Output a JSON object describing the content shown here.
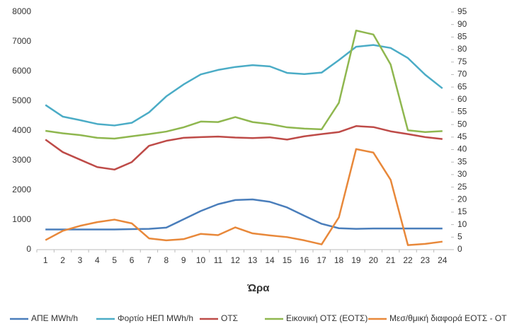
{
  "chart_data": {
    "type": "line",
    "x_label": "Ώρα",
    "categories": [
      "1",
      "2",
      "3",
      "4",
      "5",
      "6",
      "7",
      "8",
      "9",
      "10",
      "11",
      "12",
      "13",
      "14",
      "15",
      "16",
      "17",
      "18",
      "19",
      "20",
      "21",
      "22",
      "23",
      "24"
    ],
    "series": [
      {
        "name": "ΑΠΕ MWh/h",
        "color": "#4a7ebb",
        "values": [
          680,
          680,
          680,
          680,
          680,
          690,
          700,
          740,
          1020,
          1300,
          1530,
          1670,
          1690,
          1610,
          1420,
          1140,
          870,
          720,
          700,
          710,
          710,
          710,
          710,
          710
        ]
      },
      {
        "name": "Φορτίο ΗΕΠ MWh/h",
        "color": "#4bacc6",
        "values": [
          4870,
          4480,
          4360,
          4230,
          4180,
          4270,
          4620,
          5160,
          5560,
          5900,
          6050,
          6150,
          6210,
          6170,
          5950,
          5910,
          5960,
          6380,
          6830,
          6890,
          6790,
          6450,
          5890,
          5430
        ]
      },
      {
        "name": "ΟΤΣ",
        "color": "#be4b48",
        "axis": "y2",
        "values": [
          44,
          39,
          36,
          33,
          32,
          35,
          41.5,
          43.5,
          44.7,
          45,
          45.2,
          44.8,
          44.6,
          44.9,
          44,
          45.3,
          46.2,
          47,
          49.4,
          49,
          47.3,
          46.2,
          45,
          44.2
        ]
      },
      {
        "name": "Εικονική ΟΤΣ (ΕΟΤΣ)",
        "color": "#8fb74f",
        "axis": "y2",
        "values": [
          47.5,
          46.5,
          45.8,
          44.7,
          44.4,
          45.3,
          46.2,
          47.2,
          48.9,
          51.2,
          51,
          53,
          51,
          50.2,
          48.9,
          48.4,
          48.1,
          58.7,
          87.6,
          86,
          74,
          47.7,
          47,
          47.4
        ]
      },
      {
        "name": "Μεσ/θμική διαφορά ΕΟΤΣ - ΟΤΣ",
        "color": "#e8883a",
        "axis": "y2",
        "values": [
          3.8,
          7.5,
          9.5,
          11,
          12,
          10.5,
          4.5,
          3.7,
          4.2,
          6.3,
          5.8,
          8.9,
          6.5,
          5.7,
          5,
          3.7,
          2.1,
          12.9,
          40.2,
          38.8,
          27.9,
          1.8,
          2.3,
          3.2
        ]
      }
    ],
    "ylim": [
      0,
      8000
    ],
    "yticks": [
      0,
      1000,
      2000,
      3000,
      4000,
      5000,
      6000,
      7000,
      8000
    ],
    "y2lim": [
      0,
      95
    ],
    "y2ticks": [
      0,
      5,
      10,
      15,
      20,
      25,
      30,
      35,
      40,
      45,
      50,
      55,
      60,
      65,
      70,
      75,
      80,
      85,
      90,
      95
    ],
    "legend": "bottom"
  }
}
